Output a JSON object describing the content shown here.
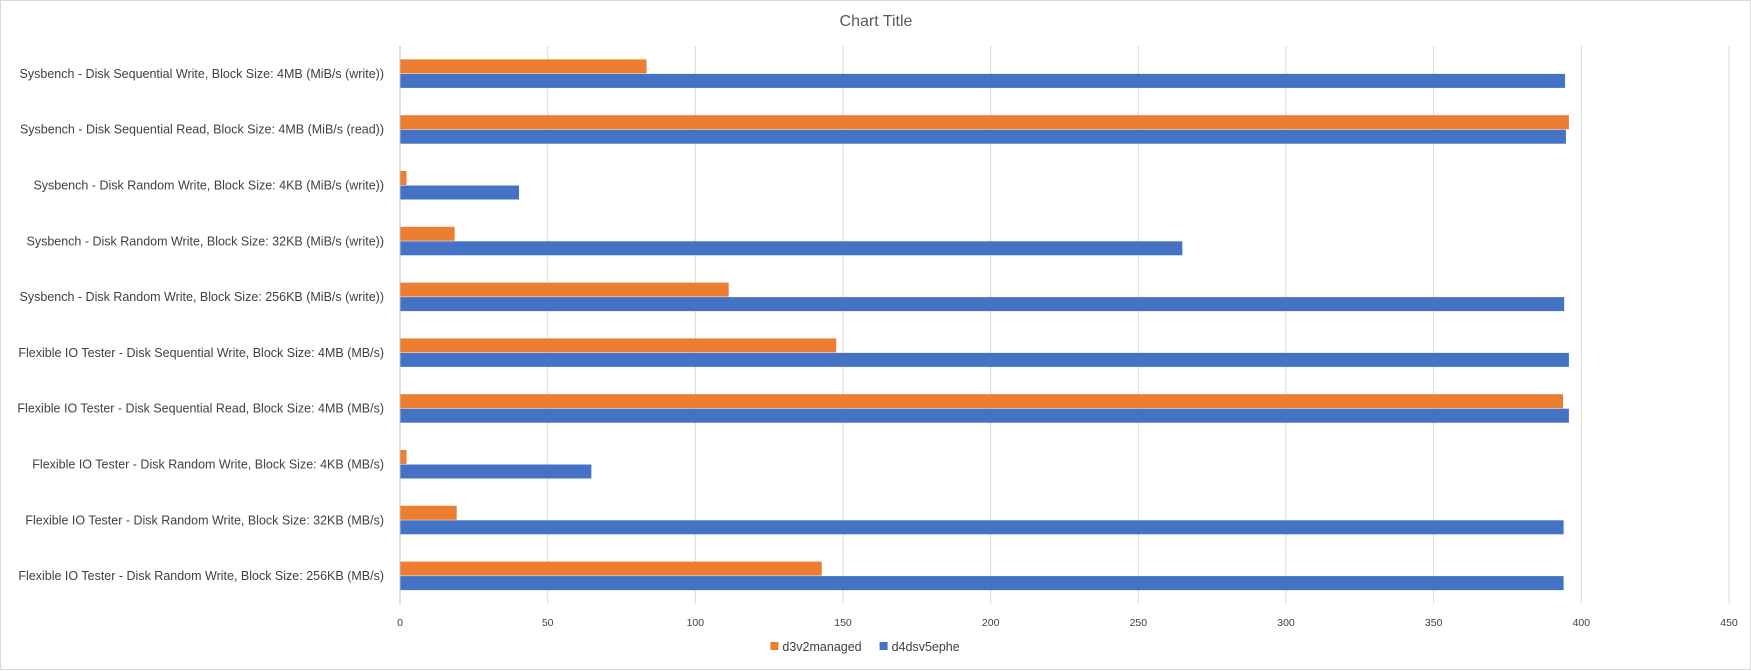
{
  "chart_data": {
    "type": "bar",
    "orientation": "horizontal",
    "title": "Chart Title",
    "xlabel": "",
    "ylabel": "",
    "xlim": [
      0,
      450
    ],
    "x_ticks": [
      0,
      50,
      100,
      150,
      200,
      250,
      300,
      350,
      400,
      450
    ],
    "grid": "vertical",
    "legend_position": "bottom",
    "categories": [
      "Sysbench - Disk Sequential Write, Block Size: 4MB (MiB/s (write))",
      "Sysbench - Disk Sequential Read, Block Size: 4MB (MiB/s (read))",
      "Sysbench - Disk Random Write, Block Size: 4KB (MiB/s (write))",
      "Sysbench - Disk Random Write, Block Size: 32KB (MiB/s (write))",
      "Sysbench - Disk Random Write, Block Size: 256KB (MiB/s (write))",
      "Flexible IO Tester - Disk Sequential Write, Block Size: 4MB (MB/s)",
      "Flexible IO Tester - Disk Sequential Read, Block Size: 4MB (MB/s)",
      "Flexible IO Tester - Disk Random Write, Block Size: 4KB (MB/s)",
      "Flexible IO Tester - Disk Random Write, Block Size: 32KB (MB/s)",
      "Flexible IO Tester - Disk Random Write, Block Size: 256KB (MB/s)"
    ],
    "series": [
      {
        "name": "d3v2managed",
        "color": "#ED7D31",
        "values": [
          83.5,
          395.8,
          2.2,
          18.5,
          111.3,
          147.7,
          393.8,
          2.2,
          19.2,
          142.8
        ]
      },
      {
        "name": "d4dsv5ephe",
        "color": "#4472C4",
        "values": [
          394.5,
          394.8,
          40.3,
          264.9,
          394.2,
          395.8,
          395.8,
          64.8,
          394.0,
          394.0
        ]
      }
    ]
  }
}
